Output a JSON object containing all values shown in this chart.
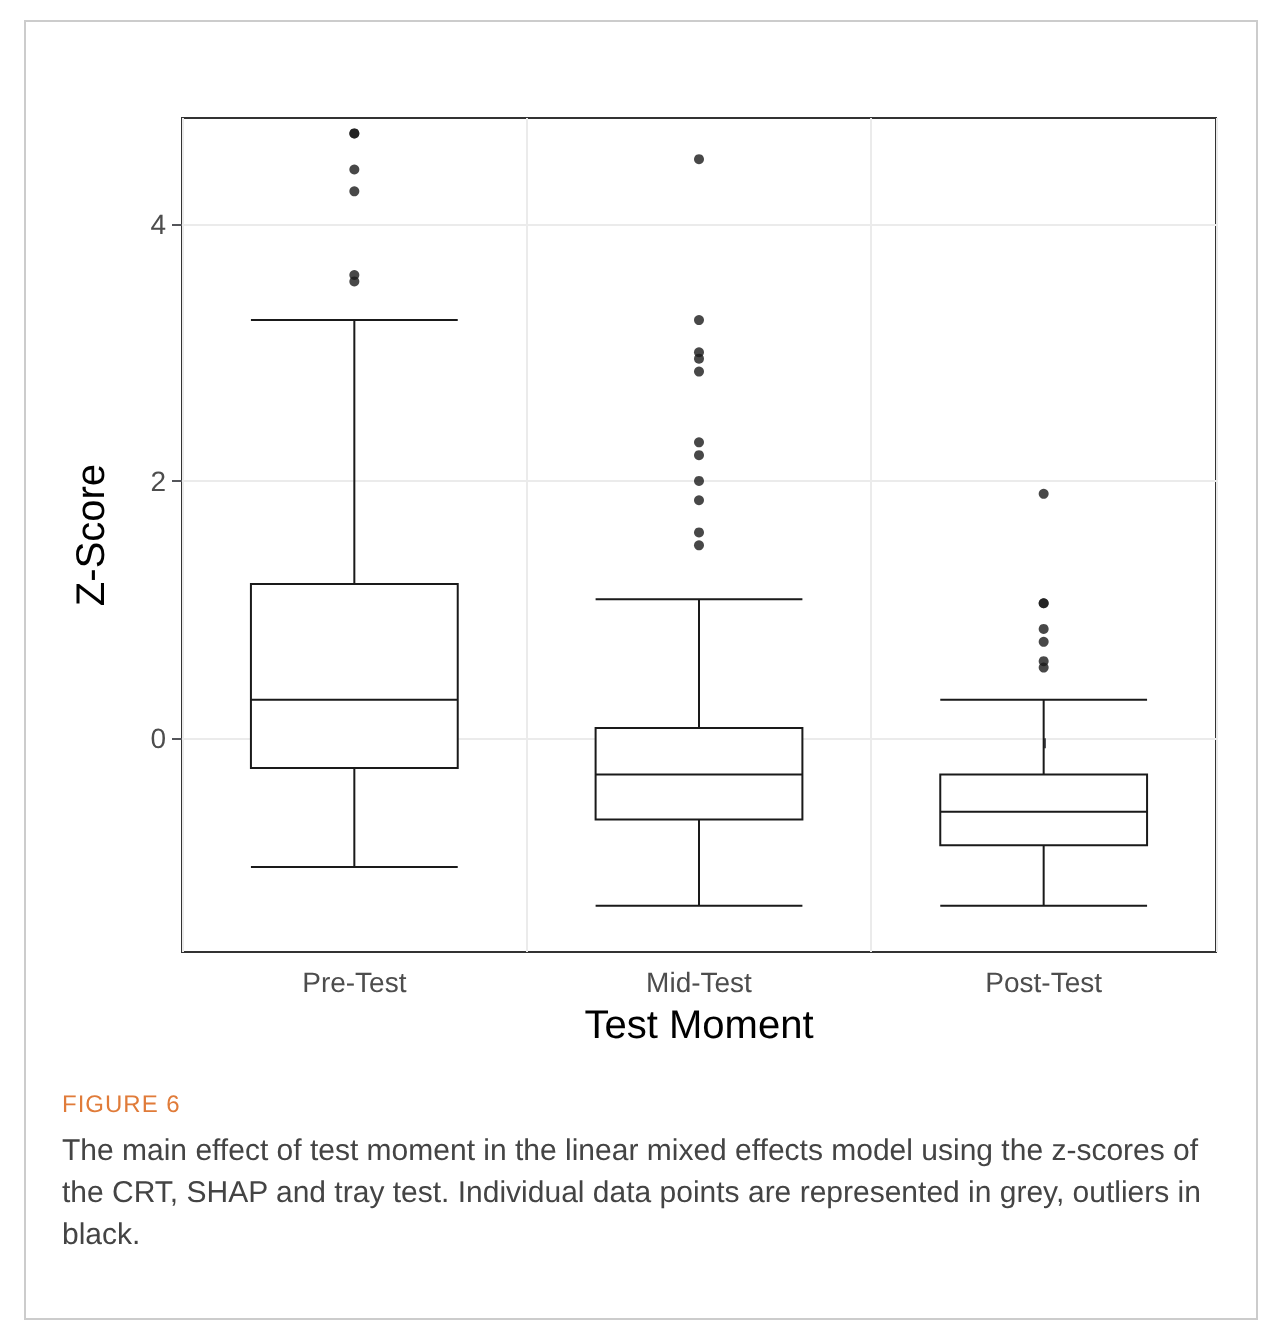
{
  "chart_data": {
    "type": "box",
    "title": "FIGURE 6",
    "annotations": [
      "The main effect of test moment in the linear mixed effects model using the z-scores of the CRT, SHAP and tray test. Individual data points are represented in grey, outliers in black."
    ],
    "xlabel": "Test Moment",
    "ylabel": "Z-Score",
    "categories": [
      "Pre-Test",
      "Mid-Test",
      "Post-Test"
    ],
    "boxes": [
      {
        "low": -1.0,
        "q1": -0.23,
        "median": 0.3,
        "q3": 1.2,
        "high": 3.25,
        "outliers": [
          3.55,
          3.6,
          4.25,
          4.42,
          4.7,
          4.7
        ]
      },
      {
        "low": -1.3,
        "q1": -0.63,
        "median": -0.28,
        "q3": 0.08,
        "high": 1.08,
        "outliers": [
          1.5,
          1.6,
          1.85,
          2.0,
          2.2,
          2.3,
          2.85,
          2.95,
          3.0,
          3.25,
          4.5
        ]
      },
      {
        "low": -1.3,
        "q1": -0.83,
        "median": -0.57,
        "q3": -0.28,
        "high": 0.3,
        "outliers": [
          0.55,
          0.6,
          0.75,
          0.85,
          1.05,
          1.05,
          1.9
        ]
      }
    ],
    "color": "#1a1a1a",
    "ylim": [
      -1.66,
      4.82
    ],
    "yticks": [
      0,
      2,
      4
    ],
    "grid": true
  }
}
